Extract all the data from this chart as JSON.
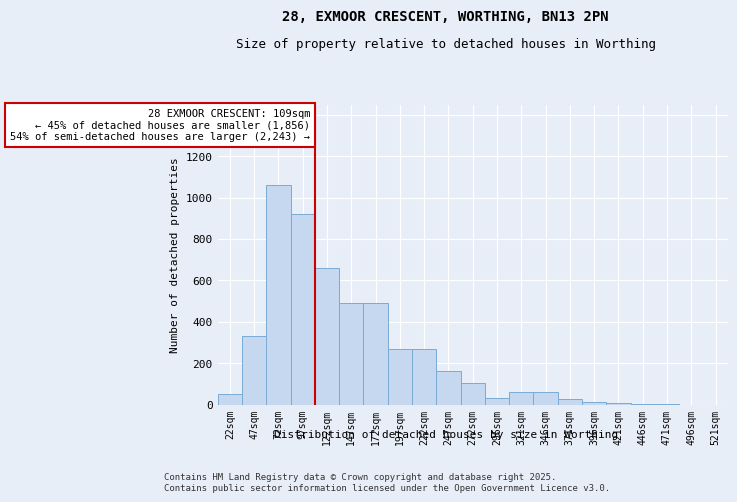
{
  "title": "28, EXMOOR CRESCENT, WORTHING, BN13 2PN",
  "subtitle": "Size of property relative to detached houses in Worthing",
  "xlabel": "Distribution of detached houses by size in Worthing",
  "ylabel": "Number of detached properties",
  "bin_labels": [
    "22sqm",
    "47sqm",
    "72sqm",
    "97sqm",
    "122sqm",
    "147sqm",
    "172sqm",
    "197sqm",
    "222sqm",
    "247sqm",
    "272sqm",
    "296sqm",
    "321sqm",
    "346sqm",
    "371sqm",
    "396sqm",
    "421sqm",
    "446sqm",
    "471sqm",
    "496sqm",
    "521sqm"
  ],
  "bar_heights": [
    50,
    330,
    1060,
    920,
    660,
    490,
    490,
    270,
    270,
    160,
    105,
    30,
    60,
    60,
    25,
    12,
    5,
    2,
    2,
    0,
    0
  ],
  "bar_color": "#c5d8f0",
  "bar_edge_color": "#7aaad4",
  "background_color": "#e8eef8",
  "grid_color": "#ffffff",
  "vline_bin_index": 3,
  "annotation_text": "28 EXMOOR CRESCENT: 109sqm\n← 45% of detached houses are smaller (1,856)\n54% of semi-detached houses are larger (2,243) →",
  "annotation_box_color": "#ffffff",
  "annotation_box_edge": "#cc0000",
  "vline_color": "#cc0000",
  "ylim": [
    0,
    1450
  ],
  "yticks": [
    0,
    200,
    400,
    600,
    800,
    1000,
    1200,
    1400
  ],
  "footer_line1": "Contains HM Land Registry data © Crown copyright and database right 2025.",
  "footer_line2": "Contains public sector information licensed under the Open Government Licence v3.0."
}
